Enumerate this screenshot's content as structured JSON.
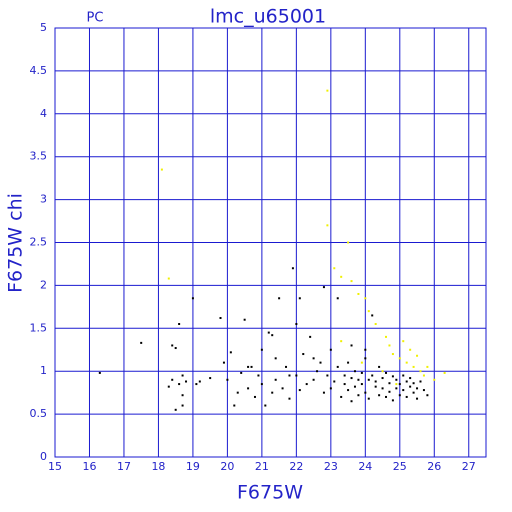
{
  "chart_data": {
    "type": "scatter",
    "title": "lmc_u65001",
    "subtitle": "PC",
    "x_label": "F675W",
    "y_label": "F675W chi",
    "xlim": [
      15,
      27.5
    ],
    "ylim": [
      0,
      5
    ],
    "xticks": [
      15,
      16,
      17,
      18,
      19,
      20,
      21,
      22,
      23,
      24,
      25,
      26,
      27
    ],
    "yticks": [
      0,
      0.5,
      1,
      1.5,
      2,
      2.5,
      3,
      3.5,
      4,
      4.5,
      5
    ],
    "grid": true,
    "grid_color": "#1a1ad0",
    "series": [
      {
        "color": "#000000",
        "x": [
          16.3,
          17.5,
          18.3,
          18.4,
          18.5,
          18.5,
          18.6,
          18.4,
          18.7,
          18.7,
          18.7,
          18.6,
          18.8,
          19.0,
          19.2,
          19.5,
          19.8,
          19.9,
          20.0,
          20.1,
          20.2,
          20.3,
          20.4,
          20.5,
          20.6,
          20.7,
          20.8,
          20.9,
          21.0,
          21.0,
          21.1,
          21.2,
          21.3,
          21.4,
          21.4,
          21.5,
          21.6,
          21.7,
          21.8,
          21.9,
          22.0,
          22.0,
          22.1,
          22.2,
          22.3,
          22.4,
          22.5,
          22.6,
          22.7,
          22.8,
          22.8,
          22.9,
          23.0,
          23.0,
          23.1,
          23.2,
          23.2,
          23.3,
          23.4,
          23.4,
          23.5,
          23.5,
          23.6,
          23.6,
          23.7,
          23.7,
          23.8,
          23.8,
          23.9,
          23.9,
          24.0,
          24.0,
          24.1,
          24.1,
          24.2,
          24.2,
          24.3,
          24.3,
          24.4,
          24.4,
          24.5,
          24.5,
          24.6,
          24.6,
          24.7,
          24.7,
          24.8,
          24.8,
          24.9,
          24.9,
          25.0,
          25.0,
          25.1,
          25.1,
          25.2,
          25.2,
          25.3,
          25.3,
          25.4,
          25.4,
          25.5,
          25.5,
          25.6,
          25.7,
          25.8,
          22.5,
          21.8,
          20.6,
          23.6,
          24.0,
          22.1,
          21.3,
          19.1
        ],
        "y": [
          0.98,
          1.33,
          0.82,
          1.3,
          1.27,
          0.55,
          1.55,
          0.9,
          0.6,
          0.72,
          0.95,
          0.85,
          0.88,
          1.85,
          0.88,
          0.92,
          1.62,
          1.1,
          0.9,
          1.22,
          0.6,
          0.75,
          0.98,
          1.6,
          0.8,
          1.05,
          0.7,
          0.95,
          1.25,
          0.85,
          0.6,
          1.45,
          0.75,
          1.15,
          0.9,
          1.85,
          0.8,
          1.05,
          0.68,
          2.2,
          1.55,
          0.95,
          0.78,
          1.2,
          0.85,
          1.4,
          0.9,
          1.0,
          1.1,
          1.98,
          0.75,
          0.95,
          1.25,
          0.8,
          0.88,
          1.85,
          1.05,
          0.7,
          0.95,
          0.85,
          1.1,
          0.78,
          0.92,
          0.65,
          1.0,
          0.82,
          0.9,
          0.72,
          0.98,
          0.85,
          1.15,
          0.75,
          0.9,
          0.68,
          1.65,
          0.95,
          0.82,
          0.88,
          1.05,
          0.72,
          0.92,
          0.8,
          0.98,
          0.7,
          0.86,
          0.76,
          0.94,
          0.66,
          0.9,
          0.8,
          0.85,
          0.72,
          0.95,
          0.78,
          0.88,
          0.7,
          0.82,
          0.92,
          0.75,
          0.86,
          0.8,
          0.68,
          0.88,
          0.78,
          0.72,
          1.15,
          0.95,
          1.05,
          1.3,
          1.25,
          1.85,
          1.42,
          0.85
        ]
      },
      {
        "color": "#f0f000",
        "x": [
          18.1,
          18.3,
          22.9,
          22.9,
          23.1,
          23.3,
          23.5,
          23.6,
          23.8,
          24.0,
          24.1,
          24.3,
          24.6,
          24.7,
          24.8,
          25.0,
          25.2,
          25.3,
          25.4,
          25.5,
          25.6,
          25.7,
          25.8,
          26.0,
          26.3,
          25.1,
          24.5,
          23.9,
          23.3,
          24.9
        ],
        "y": [
          3.35,
          2.08,
          4.27,
          2.7,
          2.2,
          2.1,
          2.5,
          2.05,
          1.9,
          1.85,
          1.7,
          1.55,
          1.4,
          1.3,
          1.2,
          1.15,
          1.1,
          1.25,
          1.05,
          1.18,
          1.0,
          0.95,
          1.05,
          0.9,
          0.98,
          1.35,
          1.0,
          1.1,
          1.35,
          0.85
        ]
      }
    ]
  }
}
